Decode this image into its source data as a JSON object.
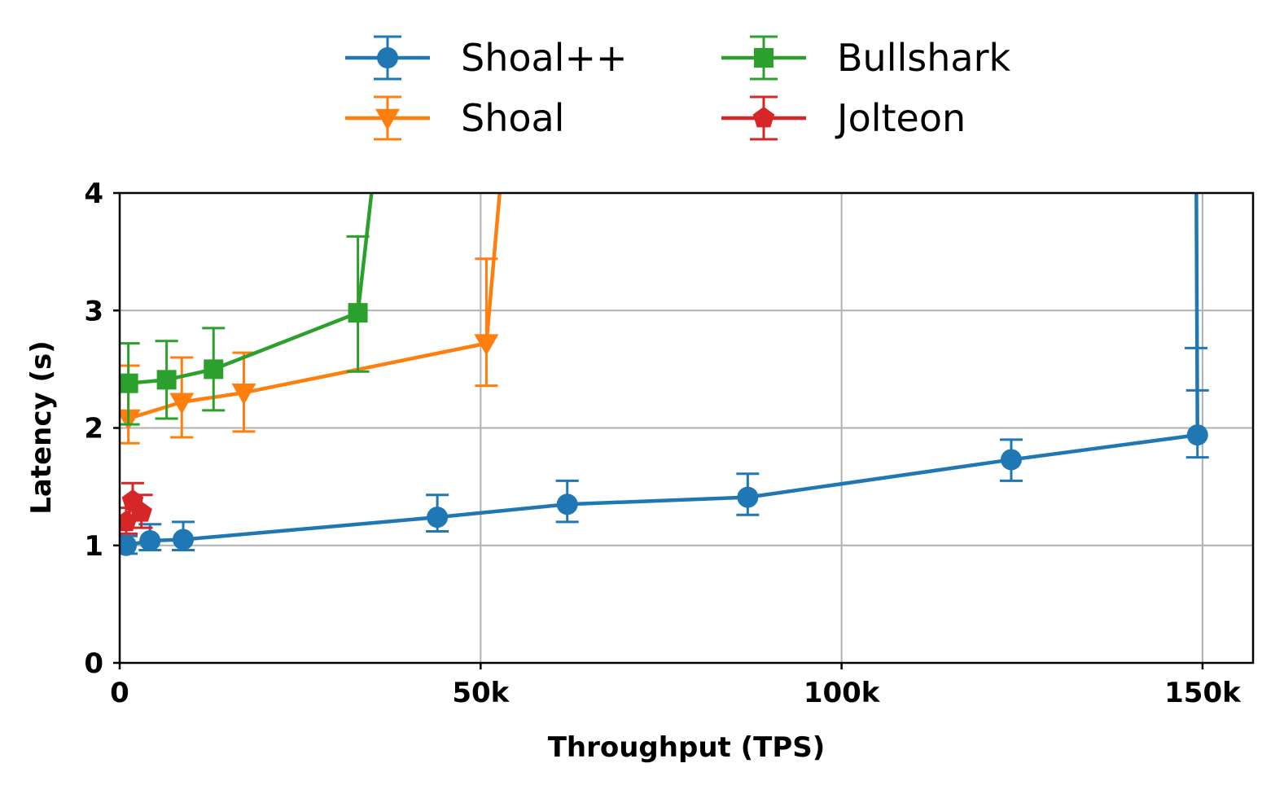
{
  "chart_data": {
    "type": "line",
    "xlabel": "Throughput (TPS)",
    "ylabel": "Latency (s)",
    "xlim": [
      0,
      157000
    ],
    "ylim": [
      0,
      4
    ],
    "x_ticks": [
      0,
      50000,
      100000,
      150000
    ],
    "x_tick_labels": [
      "0",
      "50k",
      "100k",
      "150k"
    ],
    "y_ticks": [
      0,
      1,
      2,
      3,
      4
    ],
    "y_tick_labels": [
      "0",
      "1",
      "2",
      "3",
      "4"
    ],
    "grid": true,
    "legend_position": "top-center",
    "series": [
      {
        "name": "Shoal++",
        "color": "#1f77b4",
        "marker": "circle",
        "points": [
          {
            "x": 900,
            "y": 1.0,
            "err_low": 0.93,
            "err_high": 1.08
          },
          {
            "x": 4200,
            "y": 1.04,
            "err_low": 0.96,
            "err_high": 1.18
          },
          {
            "x": 8800,
            "y": 1.05,
            "err_low": 0.96,
            "err_high": 1.2
          },
          {
            "x": 44000,
            "y": 1.24,
            "err_low": 1.12,
            "err_high": 1.43
          },
          {
            "x": 62000,
            "y": 1.35,
            "err_low": 1.2,
            "err_high": 1.55
          },
          {
            "x": 87000,
            "y": 1.41,
            "err_low": 1.26,
            "err_high": 1.61
          },
          {
            "x": 123500,
            "y": 1.73,
            "err_low": 1.55,
            "err_high": 1.9
          },
          {
            "x": 149300,
            "y": 1.94,
            "err_low": 1.75,
            "err_high": 2.32
          },
          {
            "x": 149100,
            "y": 4.6,
            "err_low": 2.68,
            "err_high": 2.68,
            "marker_hidden": true
          }
        ]
      },
      {
        "name": "Shoal",
        "color": "#ff7f0e",
        "marker": "triangle-down",
        "points": [
          {
            "x": 1200,
            "y": 2.08,
            "err_low": 1.87,
            "err_high": 2.53
          },
          {
            "x": 8600,
            "y": 2.22,
            "err_low": 1.92,
            "err_high": 2.6
          },
          {
            "x": 17200,
            "y": 2.3,
            "err_low": 1.97,
            "err_high": 2.64
          },
          {
            "x": 50800,
            "y": 2.72,
            "err_low": 2.36,
            "err_high": 3.44
          },
          {
            "x": 53500,
            "y": 4.6,
            "marker_hidden": true
          }
        ]
      },
      {
        "name": "Bullshark",
        "color": "#2ca02c",
        "marker": "square",
        "points": [
          {
            "x": 1200,
            "y": 2.38,
            "err_low": 2.03,
            "err_high": 2.72
          },
          {
            "x": 6500,
            "y": 2.41,
            "err_low": 2.08,
            "err_high": 2.74
          },
          {
            "x": 13000,
            "y": 2.5,
            "err_low": 2.15,
            "err_high": 2.85
          },
          {
            "x": 33000,
            "y": 2.98,
            "err_low": 2.48,
            "err_high": 3.63
          },
          {
            "x": 36000,
            "y": 4.6,
            "marker_hidden": true
          }
        ]
      },
      {
        "name": "Jolteon",
        "color": "#d62728",
        "marker": "pentagon",
        "points": [
          {
            "x": 900,
            "y": 1.2,
            "err_low": 1.1,
            "err_high": 1.32
          },
          {
            "x": 1800,
            "y": 1.38,
            "err_low": 1.22,
            "err_high": 1.53
          },
          {
            "x": 3000,
            "y": 1.28,
            "err_low": 1.15,
            "err_high": 1.43
          }
        ]
      }
    ]
  }
}
